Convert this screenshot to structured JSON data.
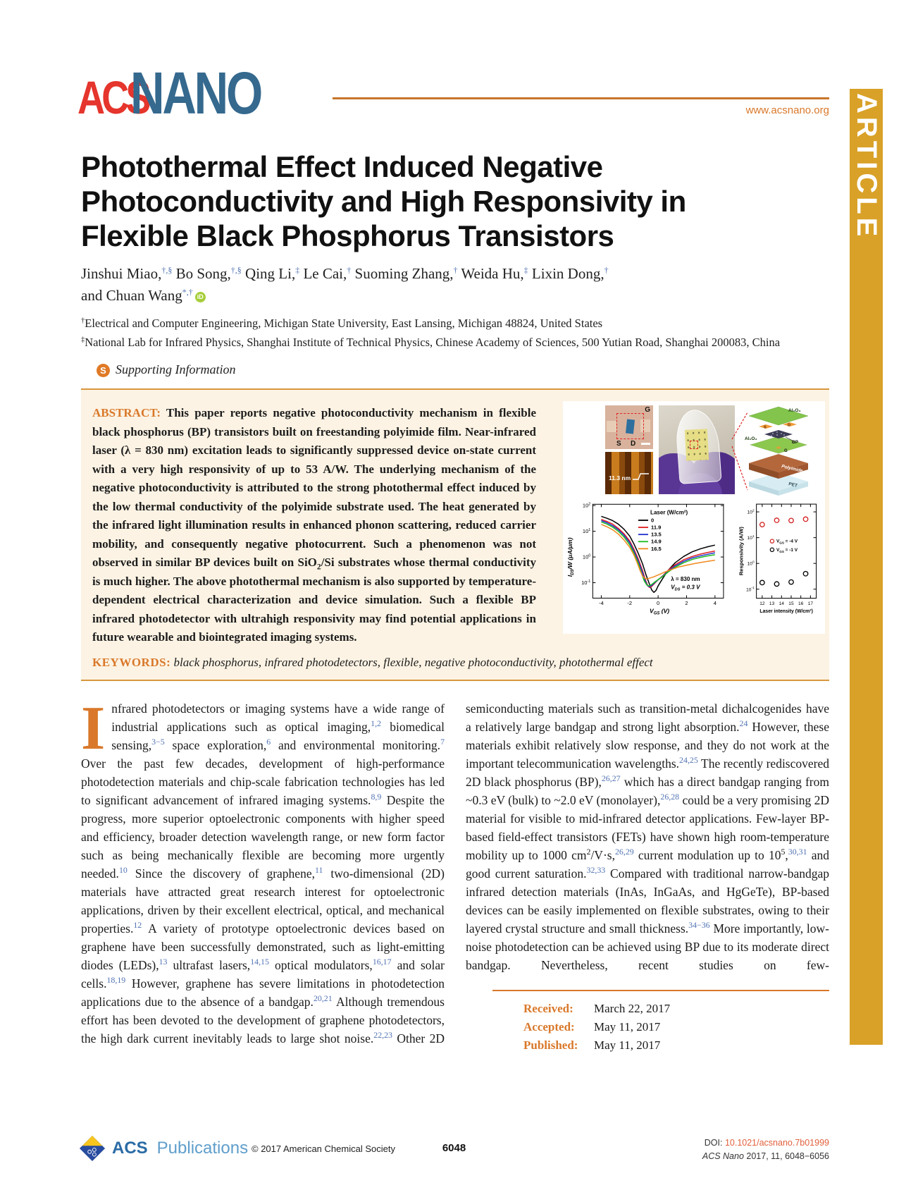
{
  "journal": {
    "logo_acs": "ACS",
    "logo_nano": "NANO",
    "website": "www.acsnano.org",
    "article_banner": "ARTICLE"
  },
  "article": {
    "title_lines": [
      "Photothermal Effect Induced Negative",
      "Photoconductivity and High Responsivity in",
      "Flexible Black Phosphorus Transistors"
    ],
    "authors_line1": [
      {
        "name": "Jinshui Miao,",
        "sup": "†,§"
      },
      {
        "name": " Bo Song,",
        "sup": "†,§"
      },
      {
        "name": " Qing Li,",
        "sup": "‡"
      },
      {
        "name": " Le Cai,",
        "sup": "†"
      },
      {
        "name": " Suoming Zhang,",
        "sup": "†"
      },
      {
        "name": " Weida Hu,",
        "sup": "‡"
      },
      {
        "name": " Lixin Dong,",
        "sup": "†"
      }
    ],
    "authors_line2": [
      {
        "name": "and Chuan Wang",
        "sup": "*,†",
        "orcid": true
      }
    ],
    "affiliations": [
      {
        "sup": "†",
        "text": "Electrical and Computer Engineering, Michigan State University, East Lansing, Michigan 48824, United States"
      },
      {
        "sup": "‡",
        "text": "National Lab for Infrared Physics, Shanghai Institute of Technical Physics, Chinese Academy of Sciences, 500 Yutian Road, Shanghai 200083, China"
      }
    ],
    "supporting_information": {
      "icon": "S",
      "label": "Supporting Information"
    }
  },
  "abstract": {
    "heading": "ABSTRACT:",
    "text": "This paper reports negative photoconductivity mechanism in flexible black phosphorus (BP) transistors built on freestanding polyimide film. Near-infrared laser (λ = 830 nm) excitation leads to significantly suppressed device on-state current with a very high responsivity of up to 53 A/W. The underlying mechanism of the negative photoconductivity is attributed to the strong photothermal effect induced by the low thermal conductivity of the polyimide substrate used. The heat generated by the infrared light illumination results in enhanced phonon scattering, reduced carrier mobility, and consequently negative photocurrent. Such a phenomenon was not observed in similar BP devices built on SiO~{2}/Si substrates whose thermal conductivity is much higher. The above photothermal mechanism is also supported by temperature-dependent electrical characterization and device simulation. Such a flexible BP infrared photodetector with ultrahigh responsivity may find potential applications in future wearable and biointegrated imaging systems."
  },
  "keywords": {
    "heading": "KEYWORDS:",
    "text": "black phosphorus, infrared photodetectors, flexible, negative photoconductivity, photothermal effect"
  },
  "intro": {
    "dropcap": "I",
    "col1": "nfrared photodetectors or imaging systems have a wide range of industrial applications such as optical imaging,^{1,2} biomedical sensing,^{3−5} space exploration,^{6} and environmental monitoring.^{7} Over the past few decades, development of high-performance photodetection materials and chip-scale fabrication technologies has led to significant advancement of infrared imaging systems.^{8,9} Despite the progress, more superior optoelectronic components with higher speed and efficiency, broader detection wavelength range, or new form factor such as being mechanically flexible are becoming more urgently needed.^{10} Since the discovery of graphene,^{11} two-dimensional (2D) materials have attracted great research interest for optoelectronic applications, driven by their excellent electrical, optical, and mechanical properties.^{12} A variety of prototype optoelectronic devices based on graphene have been successfully demonstrated, such as light-emitting diodes (LEDs),^{13} ultrafast lasers,^{14,15} optical modulators,^{16,17} and solar cells.^{18,19} However, graphene has severe limitations in photodetection applications due to the absence of a bandgap.^{20,21} Although tremendous effort has been devoted to the development of graphene photodetectors, the high dark current inevitably leads to large shot noise.^{22,23} Other 2D",
    "col2": "semiconducting materials such as transition-metal dichalcogenides have a relatively large bandgap and strong light absorption.^{24} However, these materials exhibit relatively slow response, and they do not work at the important telecommunication wavelengths.^{24,25} The recently rediscovered 2D black phosphorus (BP),^{26,27} which has a direct bandgap ranging from ~0.3 eV (bulk) to ~2.0 eV (monolayer),^{26,28} could be a very promising 2D material for visible to mid-infrared detector applications. Few-layer BP-based field-effect transistors (FETs) have shown high room-temperature mobility up to 1000 cm@{2}/V·s,^{26,29} current modulation up to 10@{5},^{30,31} and good current saturation.^{32,33} Compared with traditional narrow-bandgap infrared detection materials (InAs, InGaAs, and HgGeTe), BP-based devices can be easily implemented on flexible substrates, owing to their layered crystal structure and small thickness.^{34−36} More importantly, low-noise photodetection can be achieved using BP due to its moderate direct bandgap. Nevertheless, recent studies on few-"
  },
  "received": [
    {
      "label": "Received:",
      "value": "March 22, 2017"
    },
    {
      "label": "Accepted:",
      "value": "May 11, 2017"
    },
    {
      "label": "Published:",
      "value": "May 11, 2017"
    }
  ],
  "figure": {
    "micrograph": {
      "gate": "G",
      "source": "S",
      "drain": "D"
    },
    "afm": {
      "thickness": "11.3 nm"
    },
    "schematic": {
      "top_oxide": "Al₂O₃",
      "source": "S",
      "drain": "D",
      "channel": "BP",
      "bottom_oxide": "Al₂O₃",
      "gate": "G",
      "substrate": "Polyimide",
      "base": "PET"
    }
  },
  "chart_data": [
    {
      "type": "line",
      "xlabel": "V_{GS} (V)",
      "ylabel": "I_{DS}/W (μA/μm)",
      "legend_title": "Laser (W/cm²)",
      "legend_position": "top-center-inside",
      "annotations": [
        "λ = 830 nm",
        "V_{DS} = 0.3 V"
      ],
      "yscale": "log",
      "xlim": [
        -4.6,
        4.6
      ],
      "xticks": [
        -4,
        -2,
        0,
        2,
        4
      ],
      "yticks_exp": [
        -1,
        0,
        1,
        2
      ],
      "ylim_exp": [
        -1.6,
        2.05
      ],
      "series": [
        {
          "name": "0",
          "color": "#000000",
          "values": [
            [
              -4,
              38
            ],
            [
              -3.6,
              32
            ],
            [
              -3.2,
              26
            ],
            [
              -2.8,
              19
            ],
            [
              -2.4,
              12
            ],
            [
              -2,
              6.5
            ],
            [
              -1.7,
              3.2
            ],
            [
              -1.4,
              1.4
            ],
            [
              -1.1,
              0.55
            ],
            [
              -0.85,
              0.2
            ],
            [
              -0.6,
              0.085
            ],
            [
              -0.45,
              0.052
            ],
            [
              -0.3,
              0.042
            ],
            [
              -0.15,
              0.05
            ],
            [
              0,
              0.075
            ],
            [
              0.3,
              0.14
            ],
            [
              0.7,
              0.3
            ],
            [
              1.2,
              0.6
            ],
            [
              1.8,
              1.05
            ],
            [
              2.4,
              1.6
            ],
            [
              3,
              2.1
            ],
            [
              3.5,
              2.5
            ],
            [
              4,
              2.9
            ]
          ]
        },
        {
          "name": "11.9",
          "color": "#e01f1f",
          "values": [
            [
              -4,
              29
            ],
            [
              -3.6,
              24
            ],
            [
              -3.2,
              19
            ],
            [
              -2.8,
              13
            ],
            [
              -2.4,
              8
            ],
            [
              -2,
              4.2
            ],
            [
              -1.7,
              2.0
            ],
            [
              -1.4,
              0.85
            ],
            [
              -1.1,
              0.3
            ],
            [
              -0.9,
              0.13
            ],
            [
              -0.72,
              0.075
            ],
            [
              -0.6,
              0.065
            ],
            [
              -0.45,
              0.072
            ],
            [
              -0.2,
              0.1
            ],
            [
              0,
              0.13
            ],
            [
              0.3,
              0.18
            ],
            [
              0.7,
              0.3
            ],
            [
              1.2,
              0.5
            ],
            [
              1.8,
              0.78
            ],
            [
              2.4,
              1.05
            ],
            [
              3,
              1.3
            ],
            [
              3.5,
              1.5
            ],
            [
              4,
              1.7
            ]
          ]
        },
        {
          "name": "13.5",
          "color": "#2233cc",
          "values": [
            [
              -4,
              26
            ],
            [
              -3.6,
              21.5
            ],
            [
              -3.2,
              16.5
            ],
            [
              -2.8,
              11.5
            ],
            [
              -2.4,
              7
            ],
            [
              -2,
              3.6
            ],
            [
              -1.7,
              1.7
            ],
            [
              -1.4,
              0.7
            ],
            [
              -1.1,
              0.25
            ],
            [
              -0.92,
              0.12
            ],
            [
              -0.76,
              0.078
            ],
            [
              -0.62,
              0.07
            ],
            [
              -0.45,
              0.078
            ],
            [
              -0.2,
              0.105
            ],
            [
              0,
              0.13
            ],
            [
              0.3,
              0.175
            ],
            [
              0.7,
              0.28
            ],
            [
              1.2,
              0.45
            ],
            [
              1.8,
              0.68
            ],
            [
              2.4,
              0.92
            ],
            [
              3,
              1.12
            ],
            [
              3.5,
              1.28
            ],
            [
              4,
              1.45
            ]
          ]
        },
        {
          "name": "14.9",
          "color": "#22bb22",
          "values": [
            [
              -4,
              23
            ],
            [
              -3.6,
              19
            ],
            [
              -3.2,
              14.5
            ],
            [
              -2.8,
              10
            ],
            [
              -2.4,
              6
            ],
            [
              -2,
              3.0
            ],
            [
              -1.7,
              1.4
            ],
            [
              -1.4,
              0.58
            ],
            [
              -1.15,
              0.22
            ],
            [
              -0.97,
              0.115
            ],
            [
              -0.8,
              0.082
            ],
            [
              -0.65,
              0.075
            ],
            [
              -0.48,
              0.083
            ],
            [
              -0.2,
              0.11
            ],
            [
              0,
              0.132
            ],
            [
              0.3,
              0.17
            ],
            [
              0.7,
              0.26
            ],
            [
              1.2,
              0.4
            ],
            [
              1.8,
              0.6
            ],
            [
              2.4,
              0.8
            ],
            [
              3,
              0.97
            ],
            [
              3.5,
              1.1
            ],
            [
              4,
              1.22
            ]
          ]
        },
        {
          "name": "16.5",
          "color": "#f08a1d",
          "values": [
            [
              -4,
              18.5
            ],
            [
              -3.6,
              15
            ],
            [
              -3.2,
              11.5
            ],
            [
              -2.8,
              7.8
            ],
            [
              -2.4,
              4.6
            ],
            [
              -2,
              2.4
            ],
            [
              -1.7,
              1.2
            ],
            [
              -1.45,
              0.55
            ],
            [
              -1.25,
              0.28
            ],
            [
              -1.1,
              0.185
            ],
            [
              -0.95,
              0.15
            ],
            [
              -0.8,
              0.14
            ],
            [
              -0.6,
              0.15
            ],
            [
              -0.3,
              0.17
            ],
            [
              0,
              0.2
            ],
            [
              0.4,
              0.25
            ],
            [
              0.9,
              0.32
            ],
            [
              1.4,
              0.4
            ],
            [
              2,
              0.48
            ],
            [
              2.6,
              0.56
            ],
            [
              3.2,
              0.64
            ],
            [
              4,
              0.75
            ]
          ]
        }
      ]
    },
    {
      "type": "scatter",
      "xlabel": "Laser intensity (W/cm²)",
      "ylabel": "Responsivity (A/W)",
      "yscale": "log",
      "xlim": [
        11.4,
        17.6
      ],
      "xticks": [
        12,
        13,
        14,
        15,
        16,
        17
      ],
      "yticks_exp": [
        -1,
        0,
        1,
        2
      ],
      "ylim_exp": [
        -1.35,
        2.3
      ],
      "series": [
        {
          "name": "V_{GS} = -4 V",
          "color": "#d42020",
          "values": [
            [
              12,
              32
            ],
            [
              13.5,
              47
            ],
            [
              15,
              46
            ],
            [
              16.5,
              52
            ]
          ]
        },
        {
          "name": "V_{GS} = -1 V",
          "color": "#000000",
          "values": [
            [
              12,
              0.18
            ],
            [
              13.5,
              0.16
            ],
            [
              15,
              0.19
            ],
            [
              16.5,
              0.4
            ]
          ]
        }
      ]
    }
  ],
  "footer": {
    "brand_acs": "ACS",
    "brand_pub": "Publications",
    "copyright": "© 2017 American Chemical Society",
    "page_number": "6048",
    "doi_label": "DOI:",
    "doi": "10.1021/acsnano.7b01999",
    "citation_journal": "ACS Nano",
    "citation_rest": " 2017, 11, 6048−6056"
  }
}
